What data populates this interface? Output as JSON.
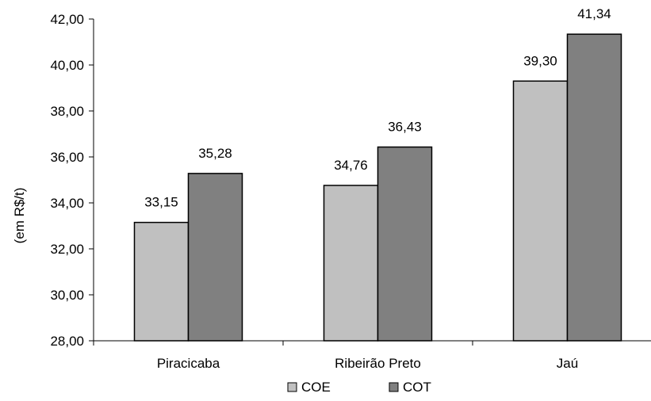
{
  "chart_data": {
    "type": "bar",
    "categories": [
      "Piracicaba",
      "Ribeirão Preto",
      "Jaú"
    ],
    "series": [
      {
        "name": "COE",
        "values": [
          33.15,
          34.76,
          39.3
        ],
        "labels": [
          "33,15",
          "34,76",
          "39,30"
        ],
        "color": "#c0c0c0"
      },
      {
        "name": "COT",
        "values": [
          35.28,
          36.43,
          41.34
        ],
        "labels": [
          "35,28",
          "36,43",
          "41,34"
        ],
        "color": "#808080"
      }
    ],
    "ylabel": "(em R$/t)",
    "ylim": [
      28,
      42
    ],
    "yticks": [
      {
        "value": 28,
        "label": "28,00"
      },
      {
        "value": 30,
        "label": "30,00"
      },
      {
        "value": 32,
        "label": "32,00"
      },
      {
        "value": 34,
        "label": "34,00"
      },
      {
        "value": 36,
        "label": "36,00"
      },
      {
        "value": 38,
        "label": "38,00"
      },
      {
        "value": 40,
        "label": "40,00"
      },
      {
        "value": 42,
        "label": "42,00"
      }
    ],
    "grid": false,
    "legend": "bottom-center"
  }
}
